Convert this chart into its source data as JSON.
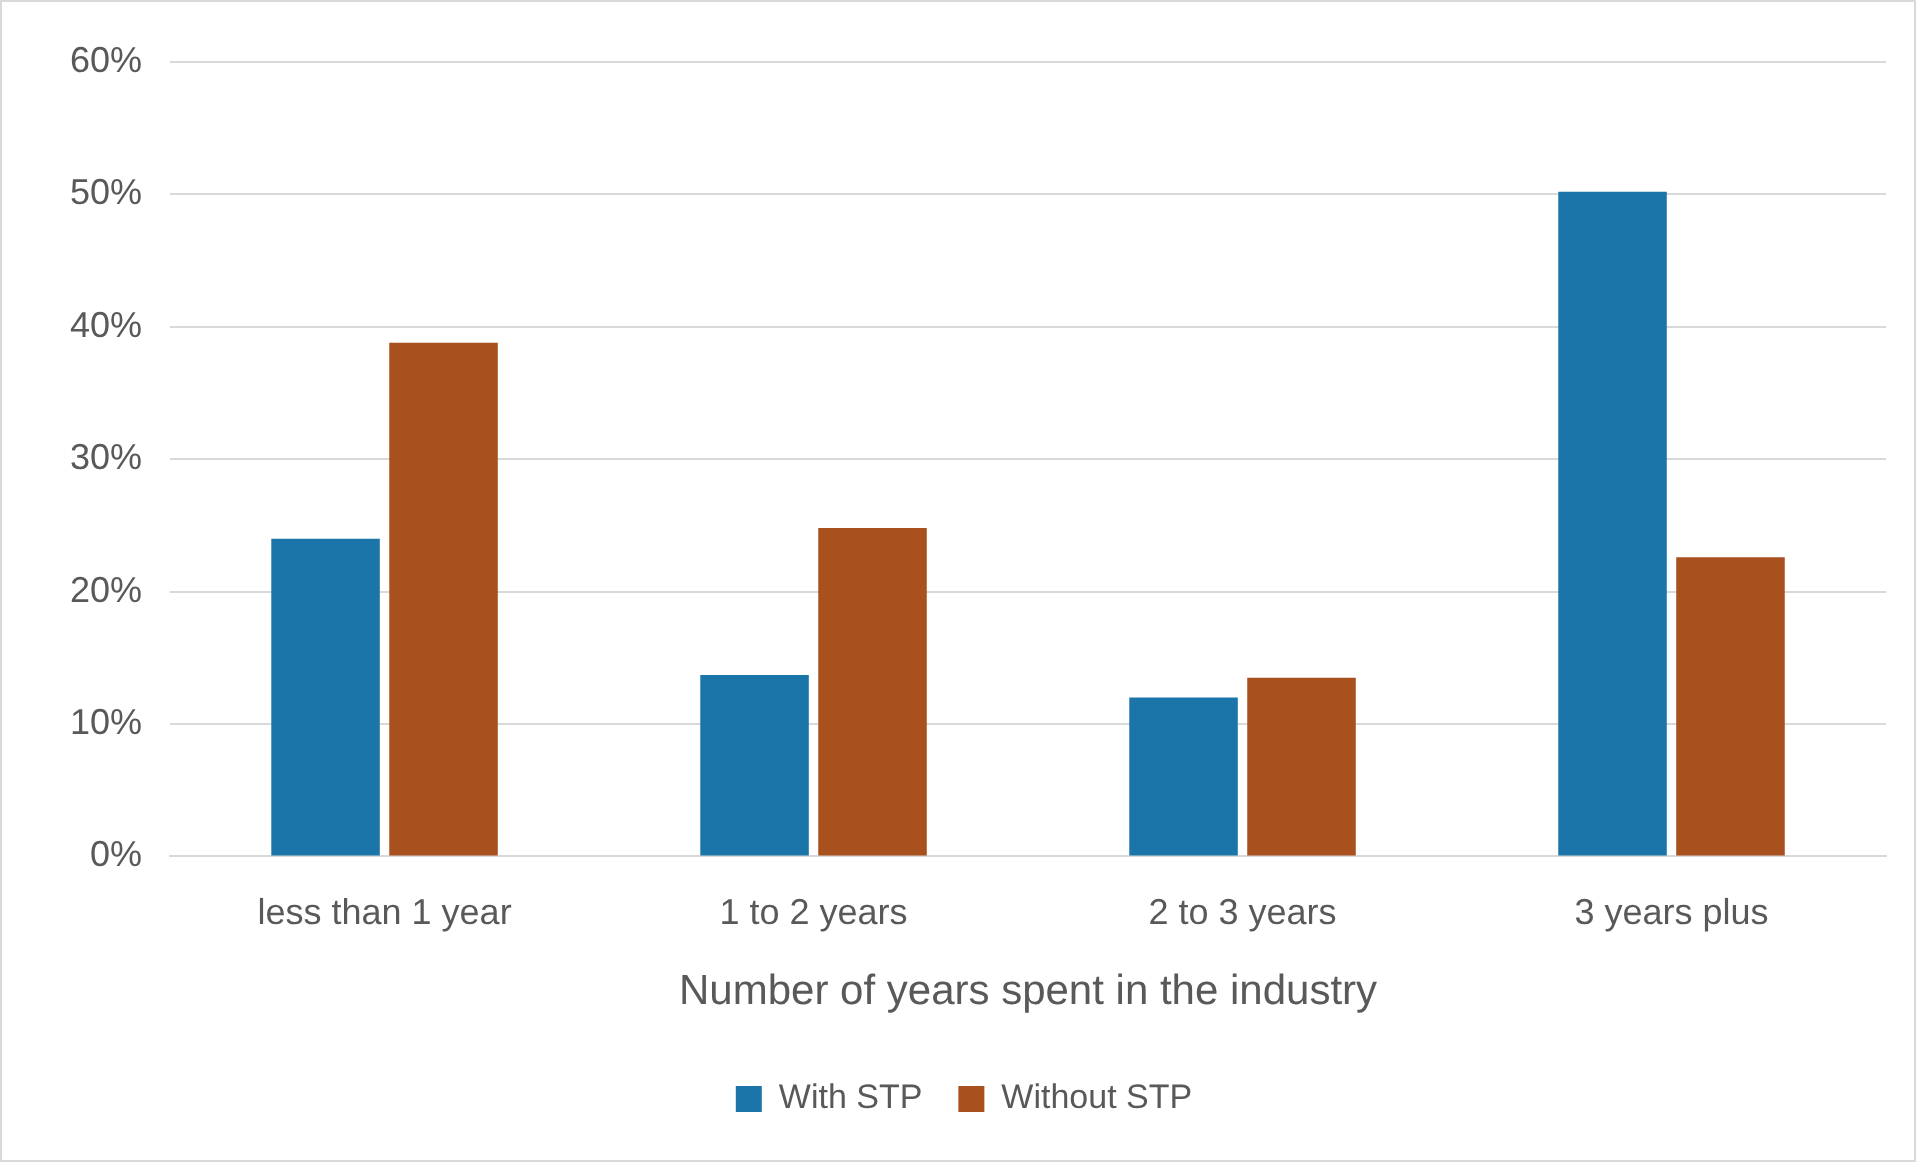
{
  "chart_data": {
    "type": "bar",
    "xlabel": "Number of years spent in the industry",
    "categories": [
      "less than 1 year",
      "1 to 2 years",
      "2 to 3 years",
      "3 years plus"
    ],
    "series": [
      {
        "name": "With STP",
        "color": "#1b75a8",
        "values": [
          24.0,
          13.7,
          12.0,
          50.2
        ]
      },
      {
        "name": "Without STP",
        "color": "#a8501e",
        "values": [
          38.8,
          24.8,
          13.5,
          22.6
        ]
      }
    ],
    "ylim": [
      0,
      60
    ],
    "yticks": [
      {
        "value": 0,
        "label": "0%"
      },
      {
        "value": 10,
        "label": "10%"
      },
      {
        "value": 20,
        "label": "20%"
      },
      {
        "value": 30,
        "label": "30%"
      },
      {
        "value": 40,
        "label": "40%"
      },
      {
        "value": 50,
        "label": "50%"
      },
      {
        "value": 60,
        "label": "60%"
      }
    ],
    "grid": "y",
    "legend": "bottom"
  }
}
